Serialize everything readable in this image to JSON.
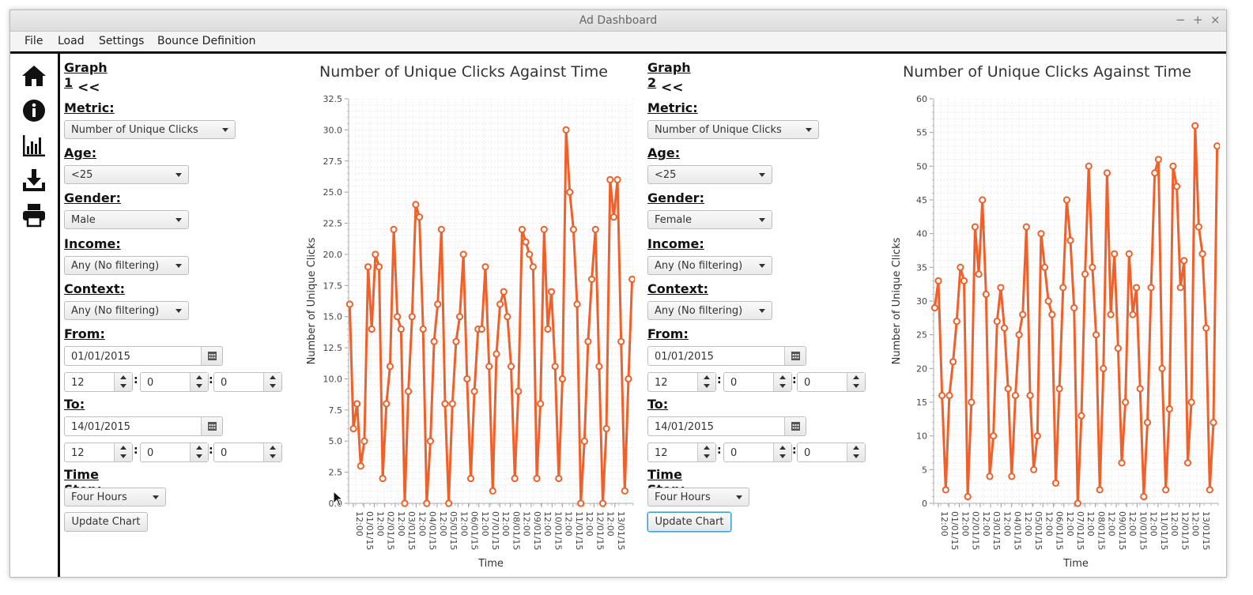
{
  "window": {
    "title": "Ad Dashboard",
    "controls": [
      "−",
      "+",
      "×"
    ]
  },
  "menu": [
    "File",
    "Load",
    "Settings",
    "Bounce Definition"
  ],
  "sidebar": {
    "icons": [
      "home-icon",
      "info-icon",
      "bar-chart-icon",
      "download-icon",
      "print-icon"
    ]
  },
  "graphs": [
    {
      "heading": "Graph 1",
      "back": "<<",
      "metric_label": "Metric:",
      "metric": "Number of Unique Clicks",
      "age_label": "Age:",
      "age": "<25",
      "gender_label": "Gender:",
      "gender": "Male",
      "income_label": "Income:",
      "income": "Any (No filtering)",
      "context_label": "Context:",
      "context": "Any (No filtering)",
      "from_label": "From:",
      "from_date": "01/01/2015",
      "from_h": "12",
      "from_m": "0",
      "from_s": "0",
      "to_label": "To:",
      "to_date": "14/01/2015",
      "to_h": "12",
      "to_m": "0",
      "to_s": "0",
      "timestep_label": "Time Step:",
      "timestep": "Four Hours",
      "update": "Update Chart"
    },
    {
      "heading": "Graph 2",
      "back": "<<",
      "metric_label": "Metric:",
      "metric": "Number of Unique Clicks",
      "age_label": "Age:",
      "age": "<25",
      "gender_label": "Gender:",
      "gender": "Female",
      "income_label": "Income:",
      "income": "Any (No filtering)",
      "context_label": "Context:",
      "context": "Any (No filtering)",
      "from_label": "From:",
      "from_date": "01/01/2015",
      "from_h": "12",
      "from_m": "0",
      "from_s": "0",
      "to_label": "To:",
      "to_date": "14/01/2015",
      "to_h": "12",
      "to_m": "0",
      "to_s": "0",
      "timestep_label": "Time Step:",
      "timestep": "Four Hours",
      "update": "Update Chart"
    }
  ],
  "chart_data": [
    {
      "type": "line",
      "title": "Number of Unique Clicks Against Time",
      "xlabel": "Time",
      "ylabel": "Number of Unique Clicks",
      "ylim": [
        0,
        32.5
      ],
      "yticks": [
        "0.0",
        "2.5",
        "5.0",
        "7.5",
        "10.0",
        "12.5",
        "15.0",
        "17.5",
        "20.0",
        "22.5",
        "25.0",
        "27.5",
        "30.0",
        "32.5"
      ],
      "xticks": [
        "12:00",
        "01/01/15",
        "12:00",
        "02/01/15",
        "12:00",
        "03/01/15",
        "12:00",
        "04/01/15",
        "12:00",
        "05/01/15",
        "12:00",
        "06/01/15",
        "12:00",
        "07/01/15",
        "12:00",
        "08/01/15",
        "12:00",
        "09/01/15",
        "12:00",
        "10/01/15",
        "12:00",
        "11/01/15",
        "12:00",
        "12/01/15",
        "12:00",
        "13/01/15"
      ],
      "grid": true,
      "color": "#f0602a",
      "series": [
        {
          "values": [
            16,
            6,
            8,
            3,
            5,
            19,
            14,
            20,
            19,
            2,
            8,
            11,
            22,
            15,
            14,
            0,
            9,
            15,
            24,
            23,
            14,
            0,
            5,
            13,
            16,
            22,
            8,
            0,
            8,
            13,
            15,
            20,
            10,
            2,
            9,
            14,
            14,
            19,
            11,
            1,
            12,
            16,
            17,
            15,
            11,
            2,
            9,
            22,
            21,
            20,
            19,
            2,
            8,
            22,
            14,
            17,
            11,
            2,
            10,
            30,
            25,
            22,
            16,
            0,
            5,
            13,
            18,
            22,
            11,
            0,
            6,
            26,
            23,
            26,
            13,
            1,
            10,
            18
          ]
        }
      ]
    },
    {
      "type": "line",
      "title": "Number of Unique Clicks Against Time",
      "xlabel": "Time",
      "ylabel": "Number of Unique Clicks",
      "ylim": [
        0,
        60
      ],
      "yticks": [
        "0",
        "5",
        "10",
        "15",
        "20",
        "25",
        "30",
        "35",
        "40",
        "45",
        "50",
        "55",
        "60"
      ],
      "xticks": [
        "12:00",
        "01/01/15",
        "12:00",
        "02/01/15",
        "12:00",
        "03/01/15",
        "12:00",
        "04/01/15",
        "12:00",
        "05/01/15",
        "12:00",
        "06/01/15",
        "12:00",
        "07/01/15",
        "12:00",
        "08/01/15",
        "12:00",
        "09/01/15",
        "12:00",
        "10/01/15",
        "12:00",
        "11/01/15",
        "12:00",
        "12/01/15",
        "12:00",
        "13/01/15"
      ],
      "grid": true,
      "color": "#f0602a",
      "series": [
        {
          "values": [
            29,
            33,
            16,
            2,
            16,
            21,
            27,
            35,
            33,
            1,
            15,
            41,
            34,
            45,
            31,
            4,
            10,
            27,
            32,
            26,
            17,
            4,
            16,
            25,
            28,
            41,
            16,
            5,
            10,
            40,
            35,
            30,
            28,
            3,
            17,
            32,
            45,
            39,
            29,
            0,
            13,
            34,
            50,
            35,
            25,
            2,
            20,
            49,
            28,
            37,
            23,
            6,
            15,
            37,
            28,
            32,
            17,
            1,
            12,
            32,
            49,
            51,
            20,
            2,
            14,
            50,
            47,
            32,
            36,
            6,
            15,
            56,
            41,
            37,
            26,
            2,
            12,
            53
          ]
        }
      ]
    }
  ]
}
